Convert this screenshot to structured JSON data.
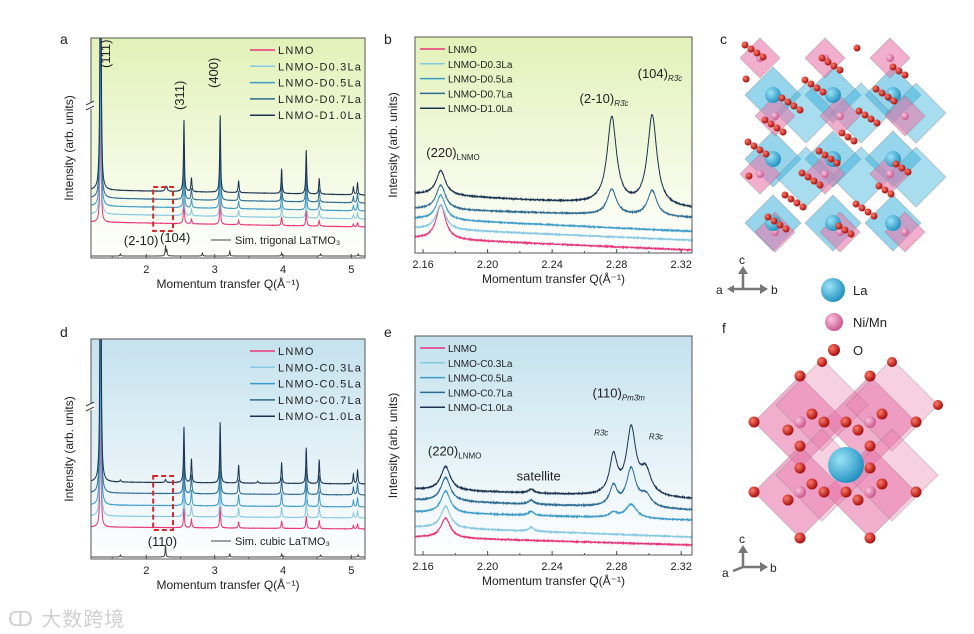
{
  "panel_letters": {
    "a": "a",
    "b": "b",
    "c": "c",
    "d": "d",
    "e": "e",
    "f": "f"
  },
  "watermark": "大数跨境",
  "colors": {
    "lnmo": "#e8347a",
    "x03": "#86c8e2",
    "x05": "#3d9bc9",
    "x07": "#2d6b92",
    "x10": "#1b3350",
    "bg_trigonal_top": "#e2f2b8",
    "bg_cubic_top": "#c4e2ee",
    "sim": "#444444",
    "la": "#3fb3dc",
    "nimn": "#e879ac",
    "o": "#d01818"
  },
  "structure_legend": [
    {
      "label": "La",
      "color": "#3fb3dc"
    },
    {
      "label": "Ni/Mn",
      "color": "#e879ac"
    },
    {
      "label": "O",
      "color": "#d01818"
    }
  ],
  "axes_glyph": {
    "a": "a",
    "b": "b",
    "c": "c"
  },
  "chart_data": [
    {
      "id": "a",
      "type": "line",
      "title": "",
      "xlabel": "Momentum transfer Q(Å⁻¹)",
      "ylabel": "Intensity (arb. units)",
      "xlim": [
        1.19,
        5.2
      ],
      "ylim": [
        0,
        220
      ],
      "xticks": [
        2,
        3,
        4,
        5
      ],
      "xtick_labels": [
        "2",
        "3",
        "4",
        "5"
      ],
      "minor_step": 0.5,
      "y_break": true,
      "background": "trigonal",
      "legend": {
        "placement": "top-right"
      },
      "series": [
        {
          "name": "LNMO",
          "color": "#e8347a",
          "baseline": [
            36,
            31
          ],
          "scale": 0.35
        },
        {
          "name": "LNMO-D0.3La",
          "color": "#86c8e2",
          "baseline": [
            44,
            39
          ],
          "scale": 0.5
        },
        {
          "name": "LNMO-D0.5La",
          "color": "#3d9bc9",
          "baseline": [
            52,
            47
          ],
          "scale": 0.65
        },
        {
          "name": "LNMO-D0.7La",
          "color": "#2d6b92",
          "baseline": [
            60,
            55
          ],
          "scale": 0.8
        },
        {
          "name": "LNMO-D1.0La",
          "color": "#1b3350",
          "baseline": [
            68,
            63
          ],
          "scale": 1.0,
          "extra_peaks": [
            [
              2.28,
              4,
              0.01
            ],
            [
              2.3,
              4,
              0.01
            ]
          ]
        }
      ],
      "peaks": [
        [
          1.33,
          400,
          0.008
        ],
        [
          2.55,
          72,
          0.008
        ],
        [
          2.66,
          14,
          0.008
        ],
        [
          3.08,
          77,
          0.008
        ],
        [
          3.35,
          12,
          0.008
        ],
        [
          3.98,
          25,
          0.008
        ],
        [
          4.34,
          44,
          0.008
        ],
        [
          4.53,
          16,
          0.008
        ],
        [
          5.03,
          8,
          0.008
        ],
        [
          5.09,
          12,
          0.008
        ]
      ],
      "reference": {
        "name": "Sim. trigonal LaTMO₃",
        "color": "#444444",
        "baseline": 2,
        "peaks": [
          [
            1.62,
            2
          ],
          [
            2.28,
            10
          ],
          [
            2.3,
            6
          ],
          [
            2.82,
            3
          ],
          [
            3.22,
            5
          ],
          [
            3.98,
            3
          ],
          [
            4.55,
            2
          ],
          [
            5.1,
            2
          ]
        ]
      },
      "highlight_box": {
        "q": [
          2.1,
          2.39
        ],
        "y": [
          27,
          71
        ]
      },
      "annotations": [
        {
          "text": "(111)",
          "q": 1.47,
          "y": 190,
          "rotate": true
        },
        {
          "text": "(311)",
          "q": 2.55,
          "y": 148,
          "rotate": true
        },
        {
          "text": "(400)",
          "q": 3.05,
          "y": 170,
          "rotate": true
        },
        {
          "text": "(2-10)",
          "q": 1.67,
          "y": 13
        },
        {
          "text": "(104)",
          "q": 2.2,
          "y": 16
        }
      ]
    },
    {
      "id": "b",
      "type": "line",
      "title": "",
      "xlabel": "Momentum transfer Q(Å⁻¹)",
      "ylabel": "Intensity (arb. units)",
      "xlim": [
        2.155,
        2.3267
      ],
      "ylim": [
        0,
        220
      ],
      "xticks": [
        2.16,
        2.2,
        2.24,
        2.28,
        2.32
      ],
      "xtick_labels": [
        "2.16",
        "2.20",
        "2.24",
        "2.28",
        "2.32"
      ],
      "minor_step": 0.02,
      "background": "trigonal",
      "legend": {
        "placement": "top-left"
      },
      "series": [
        {
          "name": "LNMO",
          "color": "#e8347a",
          "baseline": [
            15,
            3
          ],
          "peaks": [
            [
              2.171,
              35,
              0.0035
            ]
          ]
        },
        {
          "name": "LNMO-D0.3La",
          "color": "#86c8e2",
          "baseline": [
            25,
            13
          ],
          "peaks": [
            [
              2.171,
              25,
              0.0035
            ]
          ]
        },
        {
          "name": "LNMO-D0.5La",
          "color": "#3d9bc9",
          "baseline": [
            35,
            22
          ],
          "peaks": [
            [
              2.171,
              25,
              0.0035
            ]
          ]
        },
        {
          "name": "LNMO-D0.7La",
          "color": "#2d6b92",
          "baseline": [
            45,
            36
          ],
          "peaks": [
            [
              2.171,
              25,
              0.0035
            ],
            [
              2.277,
              26,
              0.0035
            ],
            [
              2.302,
              26,
              0.0035
            ]
          ]
        },
        {
          "name": "LNMO-D1.0La",
          "color": "#1b3350",
          "baseline": [
            60,
            45
          ],
          "peaks": [
            [
              2.171,
              25,
              0.0035
            ],
            [
              2.277,
              88,
              0.0035
            ],
            [
              2.302,
              92,
              0.0035
            ]
          ]
        }
      ],
      "annotations": [
        {
          "text": "(220)",
          "sub": "LNMO",
          "q": 2.162,
          "y": 98
        },
        {
          "text": "(2-10)",
          "sub": "R3̄c",
          "q": 2.257,
          "y": 153
        },
        {
          "text": "(104)",
          "sub": "R3̄c",
          "q": 2.293,
          "y": 178
        }
      ]
    },
    {
      "id": "d",
      "type": "line",
      "title": "",
      "xlabel": "Momentum transfer Q(Å⁻¹)",
      "ylabel": "Intensity (arb. units)",
      "xlim": [
        1.19,
        5.2
      ],
      "ylim": [
        0,
        220
      ],
      "xticks": [
        2,
        3,
        4,
        5
      ],
      "xtick_labels": [
        "2",
        "3",
        "4",
        "5"
      ],
      "minor_step": 0.5,
      "y_break": true,
      "background": "cubic",
      "legend": {
        "placement": "top-right"
      },
      "series": [
        {
          "name": "LNMO",
          "color": "#e8347a",
          "baseline": [
            32,
            30
          ],
          "scale": 0.35
        },
        {
          "name": "LNMO-C0.3La",
          "color": "#86c8e2",
          "baseline": [
            43,
            41
          ],
          "scale": 0.5
        },
        {
          "name": "LNMO-C0.5La",
          "color": "#3d9bc9",
          "baseline": [
            54,
            52
          ],
          "scale": 0.65
        },
        {
          "name": "LNMO-C0.7La",
          "color": "#2d6b92",
          "baseline": [
            66,
            64
          ],
          "scale": 0.8
        },
        {
          "name": "LNMO-C1.0La",
          "color": "#1b3350",
          "baseline": [
            77,
            75
          ],
          "scale": 1.0,
          "extra_peaks": [
            [
              2.28,
              3,
              0.01
            ],
            [
              1.62,
              2,
              0.01
            ],
            [
              3.63,
              2,
              0.01
            ]
          ]
        }
      ],
      "peaks": [
        [
          1.33,
          400,
          0.008
        ],
        [
          2.55,
          56,
          0.008
        ],
        [
          2.66,
          24,
          0.008
        ],
        [
          3.08,
          61,
          0.008
        ],
        [
          3.35,
          18,
          0.008
        ],
        [
          3.98,
          21,
          0.008
        ],
        [
          4.34,
          36,
          0.008
        ],
        [
          4.53,
          24,
          0.008
        ],
        [
          5.03,
          10,
          0.008
        ],
        [
          5.09,
          14,
          0.008
        ]
      ],
      "reference": {
        "name": "Sim. cubic LaTMO₃",
        "color": "#444444",
        "baseline": 2,
        "peaks": [
          [
            1.62,
            2
          ],
          [
            2.28,
            12
          ],
          [
            3.22,
            3
          ],
          [
            3.98,
            3
          ],
          [
            4.55,
            2
          ],
          [
            5.1,
            2
          ]
        ]
      },
      "highlight_box": {
        "q": [
          2.1,
          2.39
        ],
        "y": [
          29,
          83
        ]
      },
      "annotations": [
        {
          "text": "(110)",
          "q": 2.02,
          "y": 13
        }
      ]
    },
    {
      "id": "e",
      "type": "line",
      "title": "",
      "xlabel": "Momentum transfer Q(Å⁻¹)",
      "ylabel": "Intensity (arb. units)",
      "xlim": [
        2.155,
        2.3267
      ],
      "ylim": [
        0,
        220
      ],
      "xticks": [
        2.16,
        2.2,
        2.24,
        2.28,
        2.32
      ],
      "xtick_labels": [
        "2.16",
        "2.20",
        "2.24",
        "2.28",
        "2.32"
      ],
      "minor_step": 0.02,
      "background": "cubic",
      "legend": {
        "placement": "top-left"
      },
      "series": [
        {
          "name": "LNMO",
          "color": "#e8347a",
          "baseline": [
            18,
            10
          ],
          "peaks": [
            [
              2.174,
              20,
              0.0035
            ]
          ]
        },
        {
          "name": "LNMO-C0.3La",
          "color": "#86c8e2",
          "baseline": [
            28,
            18
          ],
          "peaks": [
            [
              2.174,
              22,
              0.0035
            ],
            [
              2.227,
              4,
              0.002
            ]
          ]
        },
        {
          "name": "LNMO-C0.5La",
          "color": "#3d9bc9",
          "baseline": [
            43,
            35
          ],
          "peaks": [
            [
              2.174,
              22,
              0.0035
            ],
            [
              2.227,
              4,
              0.002
            ],
            [
              2.278,
              5,
              0.003
            ],
            [
              2.289,
              14,
              0.004
            ]
          ]
        },
        {
          "name": "LNMO-C0.7La",
          "color": "#2d6b92",
          "baseline": [
            55,
            45
          ],
          "peaks": [
            [
              2.174,
              24,
              0.0035
            ],
            [
              2.227,
              4,
              0.002
            ],
            [
              2.278,
              20,
              0.0028
            ],
            [
              2.289,
              38,
              0.0035
            ],
            [
              2.298,
              12,
              0.004
            ]
          ]
        },
        {
          "name": "LNMO-C1.0La",
          "color": "#1b3350",
          "baseline": [
            66,
            56
          ],
          "peaks": [
            [
              2.174,
              24,
              0.0035
            ],
            [
              2.227,
              4,
              0.002
            ],
            [
              2.278,
              38,
              0.0028
            ],
            [
              2.289,
              66,
              0.0035
            ],
            [
              2.298,
              24,
              0.004
            ]
          ]
        }
      ],
      "annotations": [
        {
          "text": "(220)",
          "sub": "LNMO",
          "q": 2.163,
          "y": 100
        },
        {
          "text": "satellite",
          "q": 2.218,
          "y": 75
        },
        {
          "text": "(110)",
          "sub": "Pm3̄m",
          "q": 2.265,
          "y": 158
        },
        {
          "text": "R3̄c",
          "q": 2.266,
          "y": 120,
          "small": true
        },
        {
          "text": "R3̄c",
          "q": 2.3,
          "y": 116,
          "small": true
        }
      ]
    }
  ]
}
